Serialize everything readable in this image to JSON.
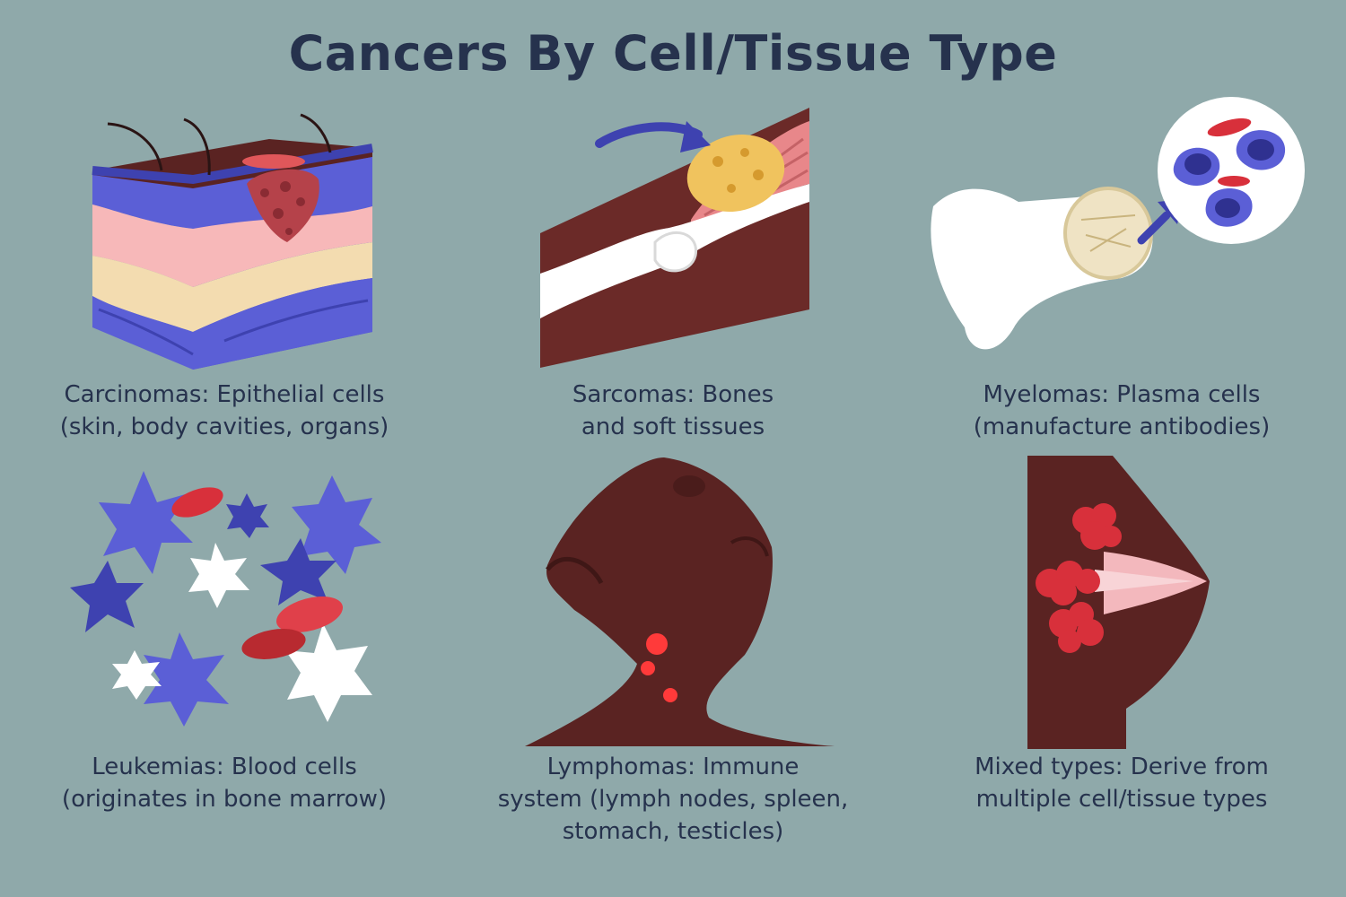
{
  "title": "Cancers By Cell/Tissue Type",
  "colors": {
    "background": "#8fa9aa",
    "text": "#26324d",
    "skin_dark": "#5a2322",
    "purple": "#5b5fd6",
    "blood_red": "#d8303b",
    "white": "#ffffff"
  },
  "panels": [
    {
      "name": "carcinomas",
      "icon": "skin-layers-icon",
      "caption": [
        "Carcinomas: Epithelial cells",
        "(skin, body cavities, organs)"
      ]
    },
    {
      "name": "sarcomas",
      "icon": "bone-muscle-icon",
      "caption": [
        "Sarcomas: Bones",
        "and soft tissues"
      ]
    },
    {
      "name": "myelomas",
      "icon": "bone-marrow-icon",
      "caption": [
        "Myelomas: Plasma cells",
        "(manufacture antibodies)"
      ]
    },
    {
      "name": "leukemias",
      "icon": "blood-cells-icon",
      "caption": [
        "Leukemias: Blood cells",
        "(originates in bone marrow)"
      ]
    },
    {
      "name": "lymphomas",
      "icon": "neck-lymph-nodes-icon",
      "caption": [
        "Lymphomas: Immune",
        "system (lymph nodes, spleen,",
        "stomach, testicles)"
      ]
    },
    {
      "name": "mixed-types",
      "icon": "breast-tissue-icon",
      "caption": [
        "Mixed types: Derive from",
        "multiple cell/tissue types"
      ]
    }
  ]
}
